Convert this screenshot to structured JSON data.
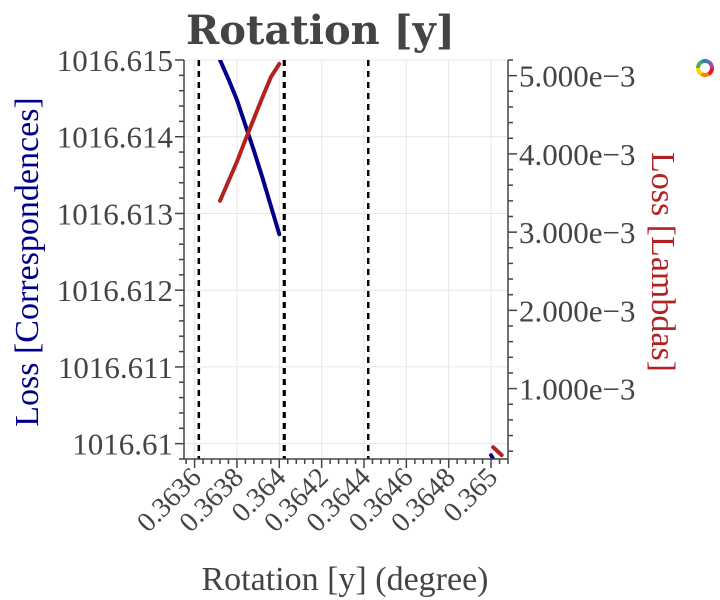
{
  "chart_data": {
    "type": "line",
    "title": "Rotation [y]",
    "xlabel": "Rotation [y] (degree)",
    "ylabel_left": "Loss [Correspondences]",
    "ylabel_right": "Loss [Lambdas]",
    "xlim": [
      0.36355,
      0.36508
    ],
    "ylim_left": [
      1016.6098,
      1016.615
    ],
    "ylim_right": [
      0.0001,
      0.0052
    ],
    "x_ticks": [
      "0.3636",
      "0.3638",
      "0.364",
      "0.3642",
      "0.3644",
      "0.3646",
      "0.3648",
      "0.365"
    ],
    "x_tick_values": [
      0.3636,
      0.3638,
      0.364,
      0.3642,
      0.3644,
      0.3646,
      0.3648,
      0.365
    ],
    "y_left_ticks": [
      "1016.615",
      "1016.614",
      "1016.613",
      "1016.612",
      "1016.611",
      "1016.61"
    ],
    "y_left_tick_values": [
      1016.615,
      1016.614,
      1016.613,
      1016.612,
      1016.611,
      1016.61
    ],
    "y_right_ticks": [
      "5.000e−3",
      "4.000e−3",
      "3.000e−3",
      "2.000e−3",
      "1.000e−3"
    ],
    "y_right_tick_values": [
      0.005,
      0.004,
      0.003,
      0.002,
      0.001
    ],
    "vertical_lines": [
      0.36362,
      0.364022,
      0.364025,
      0.36442
    ],
    "grid": true,
    "series": [
      {
        "axis": "left",
        "color": "#00008b",
        "x": [
          0.36372,
          0.36376,
          0.3638,
          0.36384,
          0.36388,
          0.36392,
          0.36396,
          0.364
        ],
        "y": [
          1016.615,
          1016.61475,
          1016.61448,
          1016.61415,
          1016.61382,
          1016.61347,
          1016.6131,
          1016.61273
        ]
      },
      {
        "axis": "right",
        "color": "#b22222",
        "x": [
          0.36372,
          0.36376,
          0.3638,
          0.36384,
          0.36388,
          0.36392,
          0.36396,
          0.364
        ],
        "y": [
          0.0034,
          0.00365,
          0.0039,
          0.00418,
          0.00445,
          0.00472,
          0.00498,
          0.00515
        ]
      },
      {
        "axis": "left",
        "color": "#00008b",
        "x": [
          0.365,
          0.36503
        ],
        "y": [
          1016.60985,
          1016.6097
        ]
      },
      {
        "axis": "right",
        "color": "#b22222",
        "x": [
          0.36501,
          0.36505
        ],
        "y": [
          0.00025,
          0.00015
        ]
      }
    ]
  },
  "colors": {
    "left_axis": "#00008b",
    "right_axis": "#b22222",
    "logo": [
      "#e41a1c",
      "#ff7f00",
      "#ffd700",
      "#4daf4a",
      "#377eb8",
      "#984ea3"
    ]
  },
  "icons": {
    "logo": "rainbow-ring-logo-icon"
  }
}
